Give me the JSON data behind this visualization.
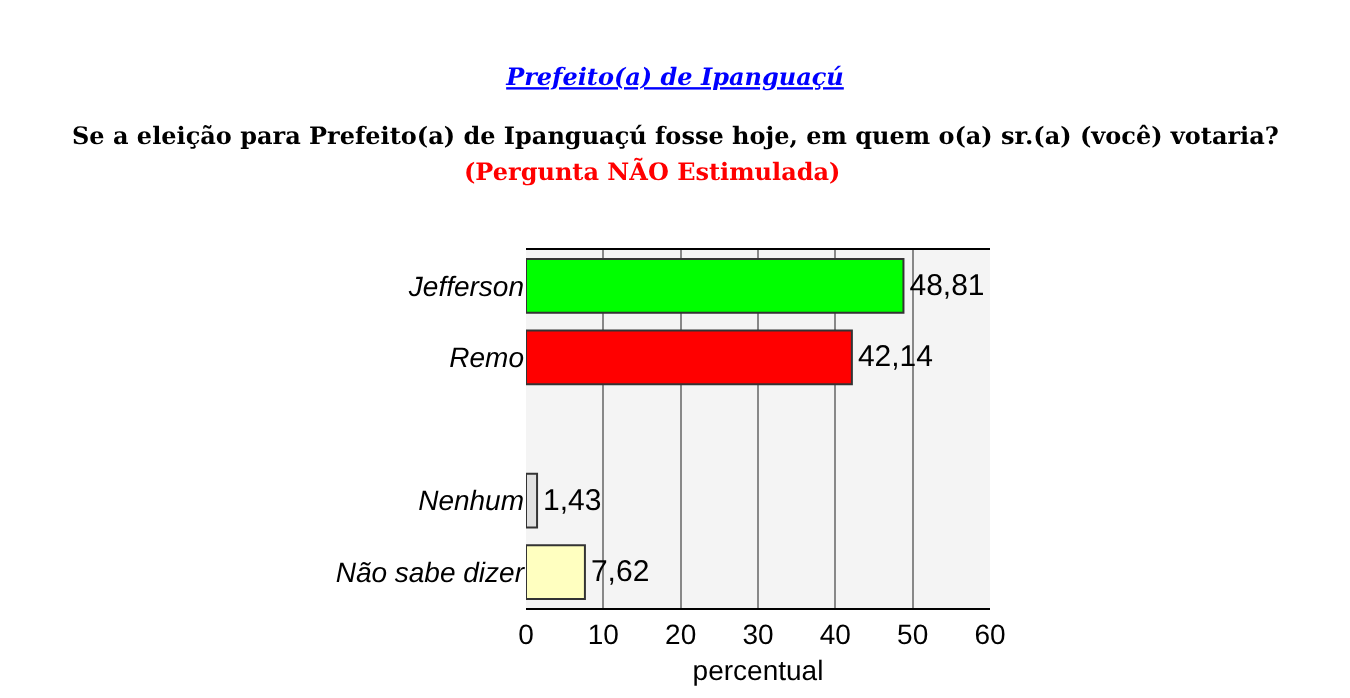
{
  "chart_data": {
    "type": "bar",
    "orientation": "horizontal",
    "title": "Prefeito(a) de Ipanguaçú",
    "subtitle": "Se a eleição para Prefeito(a) de Ipanguaçú fosse hoje, em quem o(a) sr.(a) (você) votaria?",
    "annotations": [
      "(Pergunta NÃO Estimulada)"
    ],
    "xlabel": "percentual",
    "categories": [
      "Jefferson",
      "Remo",
      null,
      "Nenhum",
      "Não sabe dizer"
    ],
    "values": [
      48.81,
      42.14,
      null,
      1.43,
      7.62
    ],
    "colors": [
      "#00ff00",
      "#ff0000",
      "#ffffff",
      "#e0e0e0",
      "#ffffc0"
    ],
    "value_labels": [
      "48,81",
      "42,14",
      null,
      "1,43",
      "7,62"
    ],
    "xlim": [
      0,
      60
    ],
    "xticks": [
      0,
      10,
      20,
      30,
      40,
      50,
      60
    ],
    "grid": "x"
  }
}
